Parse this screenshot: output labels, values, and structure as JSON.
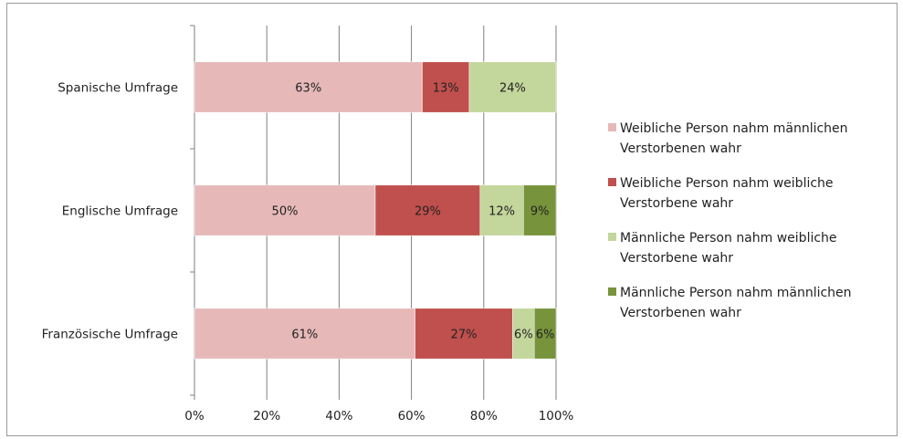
{
  "chart_data": {
    "type": "bar",
    "orientation": "horizontal",
    "stacked": "percent",
    "categories": [
      "Spanische Umfrage",
      "Englische Umfrage",
      "Französische Umfrage"
    ],
    "series": [
      {
        "name": "Weibliche Person nahm männlichen Verstorbenen wahr",
        "color": "#e6b9b8",
        "values": [
          63,
          50,
          61
        ],
        "labels": [
          "63%",
          "50%",
          "61%"
        ]
      },
      {
        "name": "Weibliche Person nahm weibliche Verstorbene wahr",
        "color": "#c0504d",
        "values": [
          13,
          29,
          27
        ],
        "labels": [
          "13%",
          "29%",
          "27%"
        ]
      },
      {
        "name": "Männliche Person nahm weibliche Verstorbene wahr",
        "color": "#c3d69b",
        "values": [
          24,
          12,
          6
        ],
        "labels": [
          "24%",
          "12%",
          "6%"
        ]
      },
      {
        "name": "Männliche Person nahm männlichen Verstorbenen wahr",
        "color": "#77933c",
        "values": [
          0,
          9,
          6
        ],
        "labels": [
          "",
          "9%",
          "6%"
        ]
      }
    ],
    "xlim": [
      0,
      100
    ],
    "xticks": [
      "0%",
      "20%",
      "40%",
      "60%",
      "80%",
      "100%"
    ],
    "grid": true,
    "legend_position": "right",
    "legend_lines": [
      [
        "Weibliche Person nahm männlichen",
        "Verstorbenen wahr"
      ],
      [
        "Weibliche Person nahm weibliche",
        "Verstorbene wahr"
      ],
      [
        "Männliche Person nahm weibliche",
        "Verstorbene wahr"
      ],
      [
        "Männliche Person nahm männlichen",
        "Verstorbenen wahr"
      ]
    ]
  }
}
